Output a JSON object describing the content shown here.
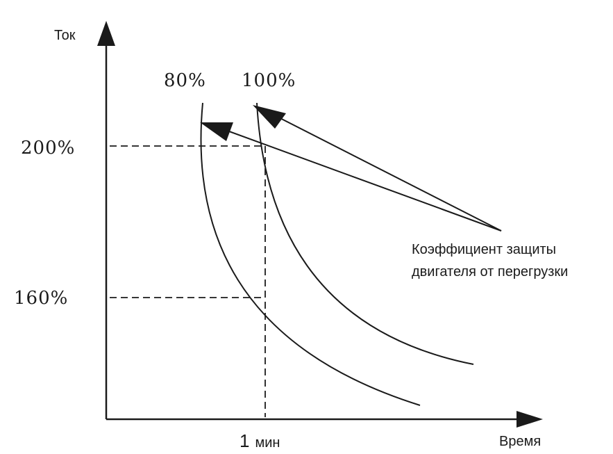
{
  "axes": {
    "y_label": "Ток",
    "x_label": "Время"
  },
  "curves": {
    "curve_80": "80%",
    "curve_100": "100%"
  },
  "levels": {
    "level_200": "200%",
    "level_160": "160%"
  },
  "time_mark": {
    "number": "1",
    "unit": "мин"
  },
  "annotation": {
    "line1": "Коэффициент защиты",
    "line2": "двигателя от перегрузки"
  }
}
